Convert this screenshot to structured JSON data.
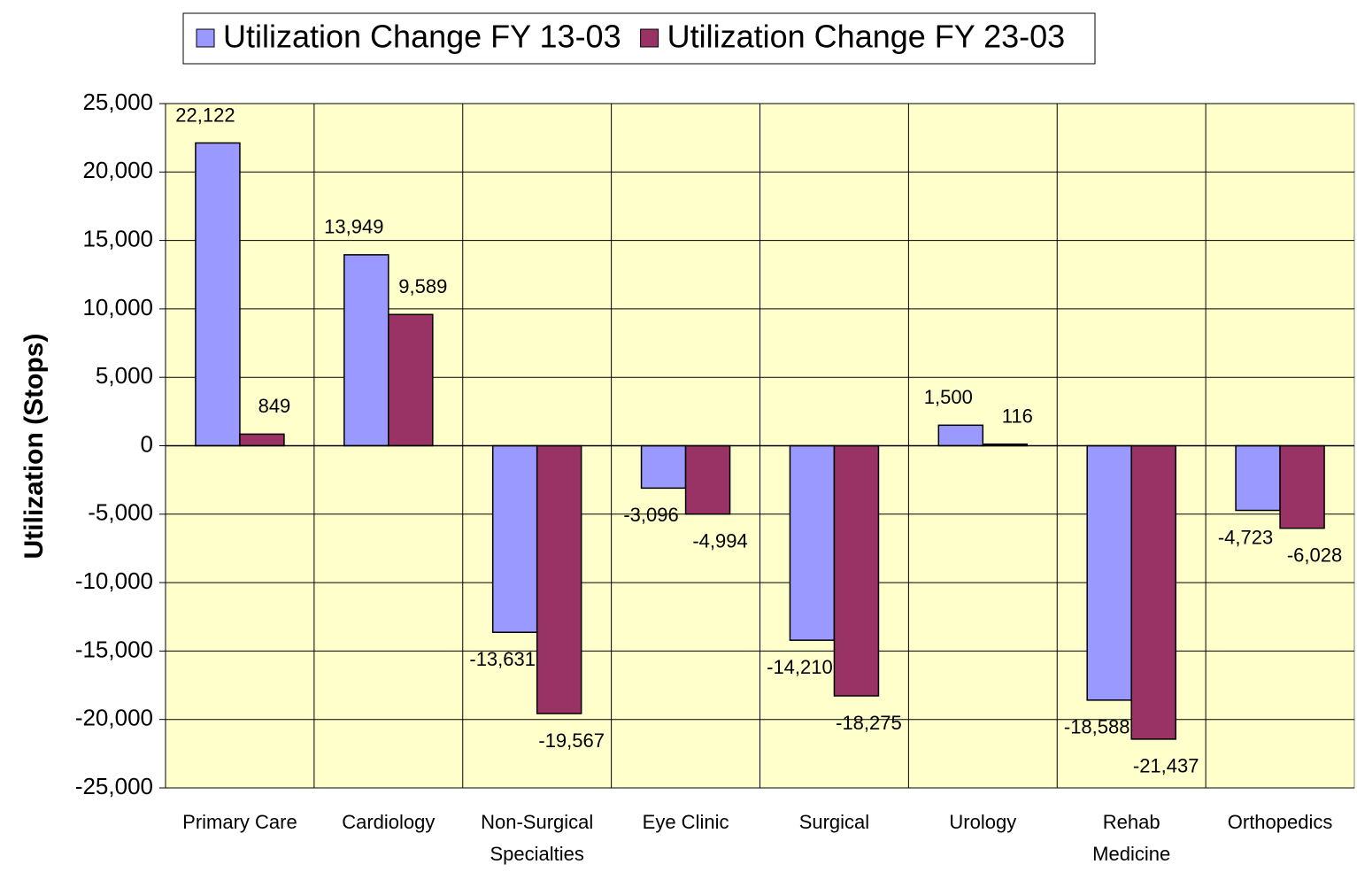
{
  "chart_data": {
    "type": "bar",
    "y_label": "Utilization (Stops)",
    "categories": [
      "Primary Care",
      "Cardiology",
      "Non-Surgical Specialties",
      "Eye Clinic",
      "Surgical",
      "Urology",
      "Rehab Medicine",
      "Orthopedics"
    ],
    "series": [
      {
        "name": "Utilization Change FY 13-03",
        "color": "#9999ff",
        "values": [
          22122,
          13949,
          -13631,
          -3096,
          -14210,
          1500,
          -18588,
          -4723
        ],
        "value_labels": [
          "22,122",
          "13,949",
          "-13,631",
          "-3,096",
          "-14,210",
          "1,500",
          "-18,588",
          "-4,723"
        ]
      },
      {
        "name": "Utilization Change FY 23-03",
        "color": "#993366",
        "values": [
          849,
          9589,
          -19567,
          -4994,
          -18275,
          116,
          -21437,
          -6028
        ],
        "value_labels": [
          "849",
          "9,589",
          "-19,567",
          "-4,994",
          "-18,275",
          "116",
          "-21,437",
          "-6,028"
        ]
      }
    ],
    "ylim": [
      -25000,
      25000
    ],
    "yticks": [
      {
        "value": -25000,
        "label": "-25,000"
      },
      {
        "value": -20000,
        "label": "-20,000"
      },
      {
        "value": -15000,
        "label": "-15,000"
      },
      {
        "value": -10000,
        "label": "-10,000"
      },
      {
        "value": -5000,
        "label": "-5,000"
      },
      0,
      {
        "value": 5000,
        "label": "5,000"
      },
      {
        "value": 10000,
        "label": "10,000"
      },
      {
        "value": 15000,
        "label": "15,000"
      },
      {
        "value": 20000,
        "label": "20,000"
      },
      {
        "value": 25000,
        "label": "25,000"
      }
    ],
    "grid": true,
    "legend": "top",
    "background": "#ffffcc"
  }
}
